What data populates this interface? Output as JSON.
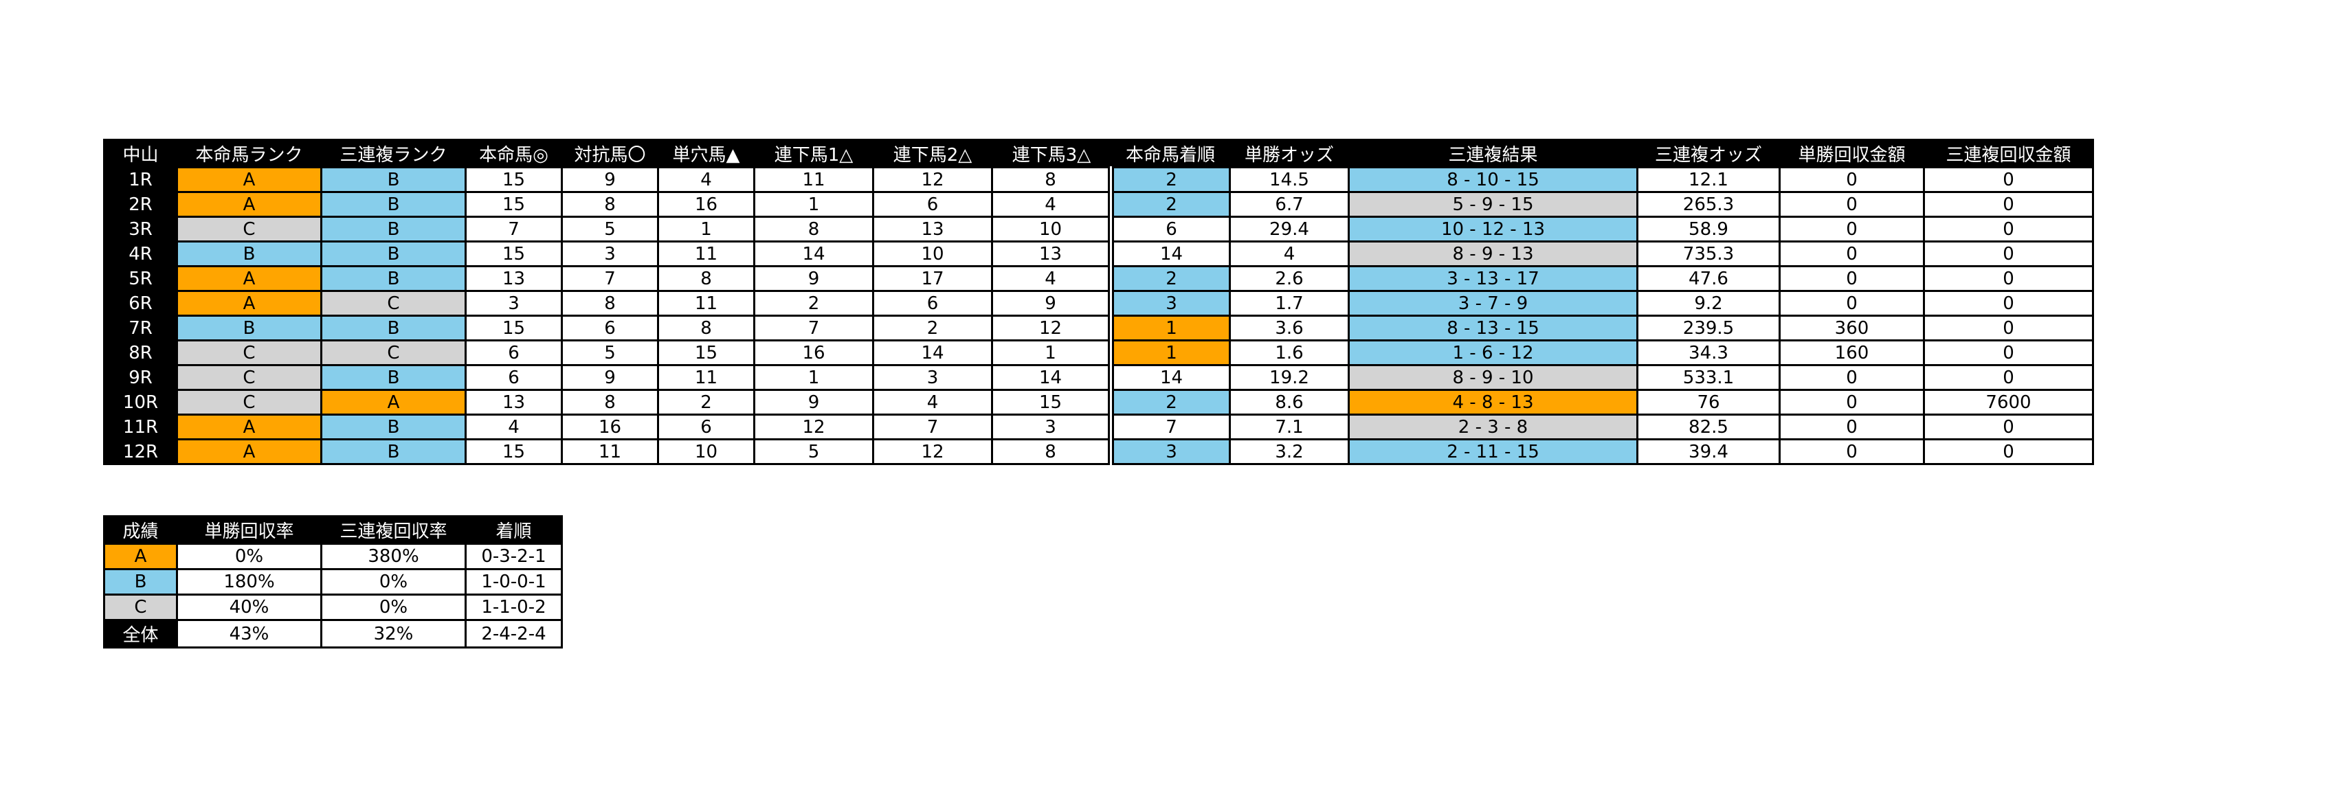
{
  "venue": "中山",
  "headers": [
    "本命馬ランク",
    "三連複ランク",
    "本命馬◎",
    "対抗馬〇",
    "単穴馬▲",
    "連下馬1△",
    "連下馬2△",
    "連下馬3△",
    "本命馬着順",
    "単勝オッズ",
    "三連複結果",
    "三連複オッズ",
    "単勝回収金額",
    "三連複回収金額"
  ],
  "rows": [
    {
      "race": "1R",
      "honmei_rank": "A",
      "sanrenpuku_rank": "B",
      "honmei": "15",
      "taiko": "9",
      "tanana": "4",
      "renka1": "11",
      "renka2": "12",
      "renka3": "8",
      "chakujun": "2",
      "chakujun_color": "B",
      "tansho_odds": "14.5",
      "result": "8 - 10 - 15",
      "result_color": "B",
      "sanrenpuku_odds": "12.1",
      "tansho_payout": "0",
      "sanrenpuku_payout": "0"
    },
    {
      "race": "2R",
      "honmei_rank": "A",
      "sanrenpuku_rank": "B",
      "honmei": "15",
      "taiko": "8",
      "tanana": "16",
      "renka1": "1",
      "renka2": "6",
      "renka3": "4",
      "chakujun": "2",
      "chakujun_color": "B",
      "tansho_odds": "6.7",
      "result": "5 - 9 - 15",
      "result_color": "C",
      "sanrenpuku_odds": "265.3",
      "tansho_payout": "0",
      "sanrenpuku_payout": "0"
    },
    {
      "race": "3R",
      "honmei_rank": "C",
      "sanrenpuku_rank": "B",
      "honmei": "7",
      "taiko": "5",
      "tanana": "1",
      "renka1": "8",
      "renka2": "13",
      "renka3": "10",
      "chakujun": "6",
      "chakujun_color": "none",
      "tansho_odds": "29.4",
      "result": "10 - 12 - 13",
      "result_color": "B",
      "sanrenpuku_odds": "58.9",
      "tansho_payout": "0",
      "sanrenpuku_payout": "0"
    },
    {
      "race": "4R",
      "honmei_rank": "B",
      "sanrenpuku_rank": "B",
      "honmei": "15",
      "taiko": "3",
      "tanana": "11",
      "renka1": "14",
      "renka2": "10",
      "renka3": "13",
      "chakujun": "14",
      "chakujun_color": "none",
      "tansho_odds": "4",
      "result": "8 - 9 - 13",
      "result_color": "C",
      "sanrenpuku_odds": "735.3",
      "tansho_payout": "0",
      "sanrenpuku_payout": "0"
    },
    {
      "race": "5R",
      "honmei_rank": "A",
      "sanrenpuku_rank": "B",
      "honmei": "13",
      "taiko": "7",
      "tanana": "8",
      "renka1": "9",
      "renka2": "17",
      "renka3": "4",
      "chakujun": "2",
      "chakujun_color": "B",
      "tansho_odds": "2.6",
      "result": "3 - 13 - 17",
      "result_color": "B",
      "sanrenpuku_odds": "47.6",
      "tansho_payout": "0",
      "sanrenpuku_payout": "0"
    },
    {
      "race": "6R",
      "honmei_rank": "A",
      "sanrenpuku_rank": "C",
      "honmei": "3",
      "taiko": "8",
      "tanana": "11",
      "renka1": "2",
      "renka2": "6",
      "renka3": "9",
      "chakujun": "3",
      "chakujun_color": "B",
      "tansho_odds": "1.7",
      "result": "3 - 7 - 9",
      "result_color": "B",
      "sanrenpuku_odds": "9.2",
      "tansho_payout": "0",
      "sanrenpuku_payout": "0"
    },
    {
      "race": "7R",
      "honmei_rank": "B",
      "sanrenpuku_rank": "B",
      "honmei": "15",
      "taiko": "6",
      "tanana": "8",
      "renka1": "7",
      "renka2": "2",
      "renka3": "12",
      "chakujun": "1",
      "chakujun_color": "A",
      "tansho_odds": "3.6",
      "result": "8 - 13 - 15",
      "result_color": "B",
      "sanrenpuku_odds": "239.5",
      "tansho_payout": "360",
      "sanrenpuku_payout": "0"
    },
    {
      "race": "8R",
      "honmei_rank": "C",
      "sanrenpuku_rank": "C",
      "honmei": "6",
      "taiko": "5",
      "tanana": "15",
      "renka1": "16",
      "renka2": "14",
      "renka3": "1",
      "chakujun": "1",
      "chakujun_color": "A",
      "tansho_odds": "1.6",
      "result": "1 - 6 - 12",
      "result_color": "B",
      "sanrenpuku_odds": "34.3",
      "tansho_payout": "160",
      "sanrenpuku_payout": "0"
    },
    {
      "race": "9R",
      "honmei_rank": "C",
      "sanrenpuku_rank": "B",
      "honmei": "6",
      "taiko": "9",
      "tanana": "11",
      "renka1": "1",
      "renka2": "3",
      "renka3": "14",
      "chakujun": "14",
      "chakujun_color": "none",
      "tansho_odds": "19.2",
      "result": "8 - 9 - 10",
      "result_color": "C",
      "sanrenpuku_odds": "533.1",
      "tansho_payout": "0",
      "sanrenpuku_payout": "0"
    },
    {
      "race": "10R",
      "honmei_rank": "C",
      "sanrenpuku_rank": "A",
      "honmei": "13",
      "taiko": "8",
      "tanana": "2",
      "renka1": "9",
      "renka2": "4",
      "renka3": "15",
      "chakujun": "2",
      "chakujun_color": "B",
      "tansho_odds": "8.6",
      "result": "4 - 8 - 13",
      "result_color": "A",
      "sanrenpuku_odds": "76",
      "tansho_payout": "0",
      "sanrenpuku_payout": "7600"
    },
    {
      "race": "11R",
      "honmei_rank": "A",
      "sanrenpuku_rank": "B",
      "honmei": "4",
      "taiko": "16",
      "tanana": "6",
      "renka1": "12",
      "renka2": "7",
      "renka3": "3",
      "chakujun": "7",
      "chakujun_color": "none",
      "tansho_odds": "7.1",
      "result": "2 - 3 - 8",
      "result_color": "C",
      "sanrenpuku_odds": "82.5",
      "tansho_payout": "0",
      "sanrenpuku_payout": "0"
    },
    {
      "race": "12R",
      "honmei_rank": "A",
      "sanrenpuku_rank": "B",
      "honmei": "15",
      "taiko": "11",
      "tanana": "10",
      "renka1": "5",
      "renka2": "12",
      "renka3": "8",
      "chakujun": "3",
      "chakujun_color": "B",
      "tansho_odds": "3.2",
      "result": "2 - 11 - 15",
      "result_color": "B",
      "sanrenpuku_odds": "39.4",
      "tansho_payout": "0",
      "sanrenpuku_payout": "0"
    }
  ],
  "summary": {
    "headers": [
      "成績",
      "単勝回収率",
      "三連複回収率",
      "着順"
    ],
    "rows": [
      {
        "label": "A",
        "color": "A",
        "tansho_rate": "0%",
        "sanrenpuku_rate": "380%",
        "record": "0-3-2-1"
      },
      {
        "label": "B",
        "color": "B",
        "tansho_rate": "180%",
        "sanrenpuku_rate": "0%",
        "record": "1-0-0-1"
      },
      {
        "label": "C",
        "color": "C",
        "tansho_rate": "40%",
        "sanrenpuku_rate": "0%",
        "record": "1-1-0-2"
      },
      {
        "label": "全体",
        "color": "black",
        "tansho_rate": "43%",
        "sanrenpuku_rate": "32%",
        "record": "2-4-2-4"
      }
    ]
  },
  "colors": {
    "A": "#FFA500",
    "B": "#87CEEB",
    "C": "#D3D3D3"
  }
}
